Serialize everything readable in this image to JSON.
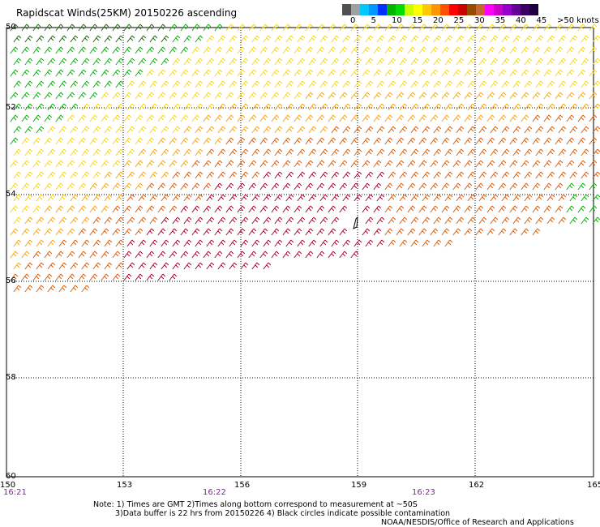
{
  "title": "Rapidscat Winds(25KM) 20150226 ascending",
  "legend": {
    "labels": [
      "0",
      "5",
      "10",
      "15",
      "20",
      "25",
      "30",
      "35",
      "40",
      "45",
      ">50 knots"
    ],
    "colors": [
      "#505050",
      "#a0a0a0",
      "#00c8ff",
      "#0096ff",
      "#0032ff",
      "#00b400",
      "#00dc00",
      "#c8ff00",
      "#ffff00",
      "#ffc800",
      "#ff9600",
      "#ff5000",
      "#ff0000",
      "#c80000",
      "#964b00",
      "#c86432",
      "#ff00ff",
      "#c800c8",
      "#9600c8",
      "#640096",
      "#3c0064",
      "#1e0040"
    ]
  },
  "map": {
    "lon_labels": [
      "150",
      "153",
      "156",
      "159",
      "162",
      "165"
    ],
    "lat_labels": [
      "50",
      "52",
      "54",
      "56",
      "58",
      "60"
    ],
    "time_labels": [
      "16:21",
      "16:22",
      "16:23"
    ]
  },
  "notes": {
    "line1": "Note: 1) Times are GMT 2)Times along bottom correspond to measurement at ~50S",
    "line2": "3)Data buffer is 22 hrs from 20150226 4) Black circles indicate possible contamination"
  },
  "credit": "NOAA/NESDIS/Office of Research and Applications"
}
